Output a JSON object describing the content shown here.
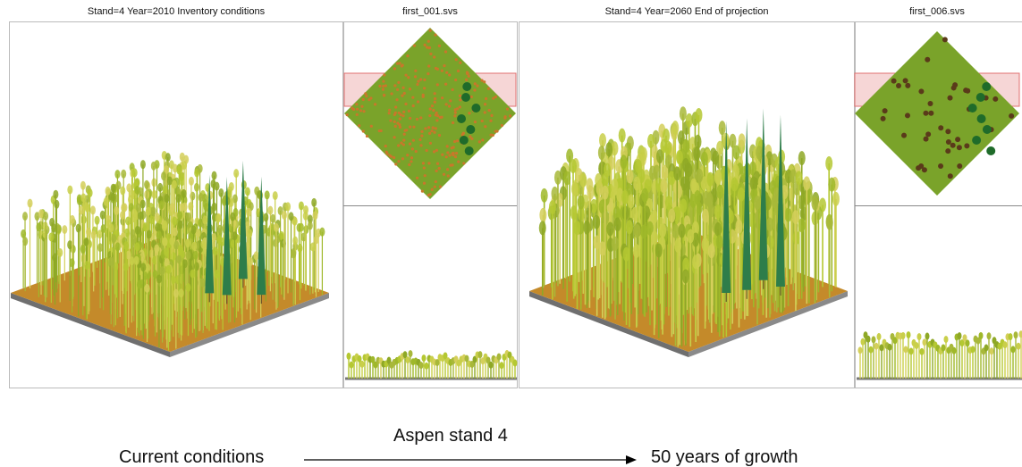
{
  "panels": [
    {
      "title": "Stand=4 Year=2010 Inventory conditions"
    },
    {
      "title": "first_001.svs"
    },
    {
      "title": "Stand=4 Year=2060 End of projection"
    },
    {
      "title": "first_006.svs"
    }
  ],
  "caption": {
    "title": "Aspen stand 4",
    "from": "Current conditions",
    "to": "50 years of growth"
  }
}
